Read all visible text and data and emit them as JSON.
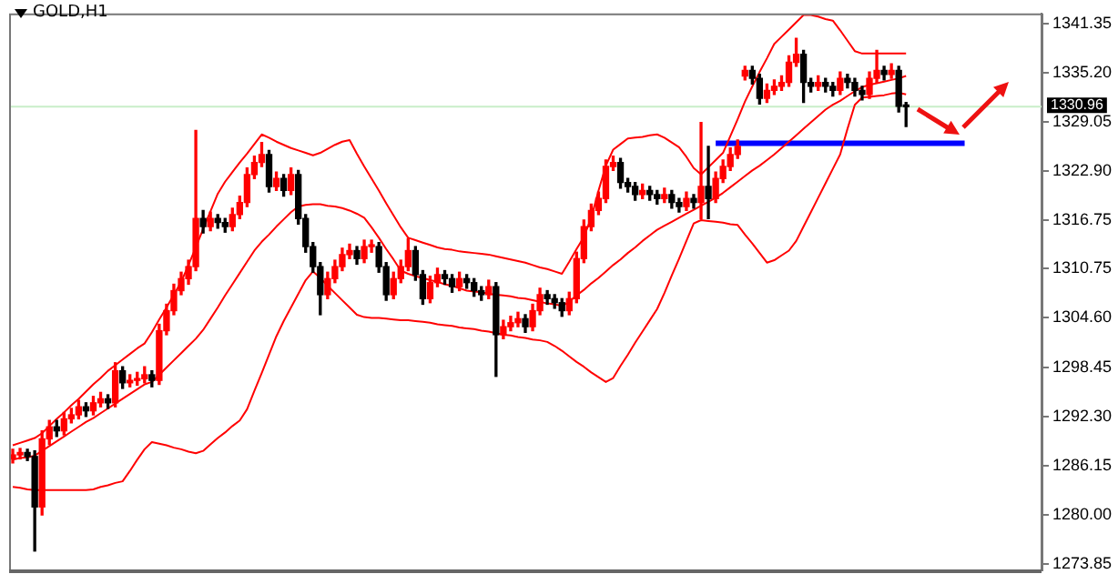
{
  "chart_data": {
    "type": "candlestick",
    "title": "GOLD,H1",
    "categories": [
      null,
      null,
      null,
      null,
      null,
      null,
      null,
      null,
      null,
      null,
      null,
      null,
      null,
      null,
      null,
      null,
      null,
      null,
      null,
      null,
      null,
      null,
      null,
      null,
      null,
      null,
      null,
      null,
      null,
      null,
      null,
      null,
      null,
      null,
      null,
      null,
      null,
      null,
      null,
      null,
      null,
      null,
      null,
      null,
      null,
      null,
      null,
      null,
      null,
      null,
      null,
      null,
      null,
      null,
      null,
      null,
      null,
      null,
      null,
      null,
      null,
      null,
      null,
      null,
      null,
      null,
      null,
      null,
      null,
      null,
      null,
      null,
      null,
      null,
      null,
      null,
      null,
      null,
      null,
      null,
      null,
      null,
      null,
      null,
      null,
      null,
      null,
      null,
      null,
      null,
      null,
      null,
      null,
      null,
      null,
      null,
      null,
      null,
      null,
      null,
      null,
      null,
      null,
      null,
      null,
      null,
      null,
      null,
      null,
      null,
      null,
      null,
      null,
      null,
      null,
      null,
      null,
      null,
      null,
      null,
      null,
      null,
      null,
      null,
      null,
      null,
      null,
      null,
      null,
      null,
      null,
      null,
      null,
      null,
      null,
      null,
      null,
      null,
      null,
      null,
      null
    ],
    "ohlc": [
      [
        1287.0,
        1288.2,
        1286.5,
        1287.5
      ],
      [
        1287.5,
        1288.3,
        1287.0,
        1287.8
      ],
      [
        1287.8,
        1288.2,
        1286.8,
        1287.3
      ],
      [
        1287.3,
        1288.0,
        1275.5,
        1281.0
      ],
      [
        1281.0,
        1290.5,
        1280.0,
        1289.5
      ],
      [
        1289.5,
        1291.8,
        1288.8,
        1291.0
      ],
      [
        1291.0,
        1291.8,
        1289.8,
        1290.5
      ],
      [
        1290.5,
        1292.8,
        1290.0,
        1292.0
      ],
      [
        1292.0,
        1293.3,
        1291.5,
        1292.5
      ],
      [
        1292.5,
        1294.3,
        1292.0,
        1293.5
      ],
      [
        1293.5,
        1294.0,
        1292.3,
        1293.0
      ],
      [
        1293.0,
        1294.8,
        1292.5,
        1294.0
      ],
      [
        1294.0,
        1295.3,
        1293.5,
        1294.5
      ],
      [
        1294.5,
        1295.0,
        1293.3,
        1294.0
      ],
      [
        1294.0,
        1299.0,
        1293.5,
        1298.0
      ],
      [
        1298.0,
        1298.5,
        1295.8,
        1296.5
      ],
      [
        1296.5,
        1297.5,
        1296.0,
        1296.8
      ],
      [
        1296.8,
        1297.8,
        1296.2,
        1297.0
      ],
      [
        1297.0,
        1298.5,
        1296.5,
        1297.5
      ],
      [
        1297.5,
        1298.0,
        1296.0,
        1296.8
      ],
      [
        1296.8,
        1303.8,
        1296.3,
        1303.0
      ],
      [
        1303.0,
        1306.3,
        1302.5,
        1305.5
      ],
      [
        1305.5,
        1308.8,
        1305.0,
        1308.0
      ],
      [
        1308.0,
        1310.3,
        1307.5,
        1309.5
      ],
      [
        1309.5,
        1311.8,
        1308.8,
        1311.0
      ],
      [
        1311.0,
        1328.0,
        1310.5,
        1317.0
      ],
      [
        1317.0,
        1318.0,
        1315.2,
        1316.0
      ],
      [
        1316.0,
        1317.8,
        1315.5,
        1317.0
      ],
      [
        1317.0,
        1317.5,
        1315.8,
        1316.5
      ],
      [
        1316.5,
        1317.0,
        1315.3,
        1316.0
      ],
      [
        1316.0,
        1318.3,
        1315.5,
        1317.5
      ],
      [
        1317.5,
        1319.8,
        1317.0,
        1319.0
      ],
      [
        1319.0,
        1323.3,
        1318.5,
        1322.5
      ],
      [
        1322.5,
        1324.8,
        1322.0,
        1324.0
      ],
      [
        1324.0,
        1326.5,
        1323.5,
        1325.0
      ],
      [
        1325.0,
        1325.5,
        1320.3,
        1321.0
      ],
      [
        1321.0,
        1322.8,
        1320.5,
        1322.0
      ],
      [
        1322.0,
        1322.5,
        1319.8,
        1320.5
      ],
      [
        1320.5,
        1323.3,
        1320.0,
        1322.5
      ],
      [
        1322.5,
        1323.0,
        1316.3,
        1317.0
      ],
      [
        1317.0,
        1317.5,
        1312.8,
        1313.5
      ],
      [
        1313.5,
        1314.0,
        1310.3,
        1311.0
      ],
      [
        1311.0,
        1311.5,
        1305.0,
        1307.5
      ],
      [
        1307.5,
        1310.3,
        1307.0,
        1309.5
      ],
      [
        1309.5,
        1311.8,
        1309.0,
        1311.0
      ],
      [
        1311.0,
        1313.3,
        1310.5,
        1312.5
      ],
      [
        1312.5,
        1313.8,
        1312.0,
        1313.0
      ],
      [
        1313.0,
        1313.5,
        1311.3,
        1312.0
      ],
      [
        1312.0,
        1314.3,
        1311.5,
        1313.5
      ],
      [
        1313.5,
        1314.3,
        1312.8,
        1313.5
      ],
      [
        1313.5,
        1314.0,
        1310.3,
        1311.0
      ],
      [
        1311.0,
        1311.5,
        1306.8,
        1307.5
      ],
      [
        1307.5,
        1310.3,
        1307.0,
        1309.5
      ],
      [
        1309.5,
        1311.8,
        1309.0,
        1311.0
      ],
      [
        1311.0,
        1314.5,
        1310.5,
        1313.0
      ],
      [
        1313.0,
        1313.5,
        1309.3,
        1310.0
      ],
      [
        1310.0,
        1310.5,
        1306.3,
        1307.0
      ],
      [
        1307.0,
        1309.8,
        1306.5,
        1309.0
      ],
      [
        1309.0,
        1310.8,
        1308.5,
        1310.0
      ],
      [
        1310.0,
        1310.5,
        1308.8,
        1309.5
      ],
      [
        1309.5,
        1310.0,
        1307.8,
        1308.5
      ],
      [
        1308.5,
        1310.3,
        1308.0,
        1309.5
      ],
      [
        1309.5,
        1310.0,
        1308.3,
        1309.0
      ],
      [
        1309.0,
        1309.5,
        1307.3,
        1308.0
      ],
      [
        1308.0,
        1308.5,
        1306.8,
        1307.5
      ],
      [
        1307.5,
        1309.3,
        1307.0,
        1308.5
      ],
      [
        1308.5,
        1309.0,
        1297.3,
        1302.5
      ],
      [
        1302.5,
        1304.3,
        1302.0,
        1303.5
      ],
      [
        1303.5,
        1304.8,
        1303.0,
        1304.0
      ],
      [
        1304.0,
        1305.3,
        1303.5,
        1304.5
      ],
      [
        1304.5,
        1305.0,
        1302.8,
        1303.5
      ],
      [
        1303.5,
        1306.3,
        1303.0,
        1305.5
      ],
      [
        1305.5,
        1308.3,
        1305.0,
        1307.5
      ],
      [
        1307.5,
        1308.0,
        1306.3,
        1307.0
      ],
      [
        1307.0,
        1307.5,
        1305.8,
        1306.5
      ],
      [
        1306.5,
        1307.0,
        1304.8,
        1305.5
      ],
      [
        1305.5,
        1307.8,
        1305.0,
        1307.0
      ],
      [
        1307.0,
        1312.8,
        1306.5,
        1312.0
      ],
      [
        1312.0,
        1316.8,
        1311.5,
        1316.0
      ],
      [
        1316.0,
        1318.8,
        1315.5,
        1318.0
      ],
      [
        1318.0,
        1320.3,
        1317.5,
        1319.5
      ],
      [
        1319.5,
        1324.3,
        1319.0,
        1323.5
      ],
      [
        1323.5,
        1324.8,
        1323.0,
        1324.0
      ],
      [
        1324.0,
        1324.5,
        1320.8,
        1321.5
      ],
      [
        1321.5,
        1322.0,
        1320.3,
        1321.0
      ],
      [
        1321.0,
        1321.5,
        1319.3,
        1320.0
      ],
      [
        1320.0,
        1321.3,
        1319.5,
        1320.5
      ],
      [
        1320.5,
        1321.0,
        1319.3,
        1320.0
      ],
      [
        1320.0,
        1320.5,
        1318.8,
        1319.5
      ],
      [
        1319.5,
        1320.8,
        1319.0,
        1320.0
      ],
      [
        1320.0,
        1320.5,
        1318.3,
        1319.0
      ],
      [
        1319.0,
        1319.5,
        1317.8,
        1318.5
      ],
      [
        1318.5,
        1320.3,
        1318.0,
        1319.5
      ],
      [
        1319.5,
        1320.0,
        1318.3,
        1319.0
      ],
      [
        1319.0,
        1329.0,
        1317.0,
        1321.0
      ],
      [
        1321.0,
        1326.0,
        1317.0,
        1319.5
      ],
      [
        1319.5,
        1322.8,
        1319.0,
        1322.0
      ],
      [
        1322.0,
        1324.3,
        1321.5,
        1323.5
      ],
      [
        1323.5,
        1325.8,
        1323.0,
        1325.0
      ],
      [
        1325.0,
        1326.8,
        1324.5,
        1326.0
      ],
      [
        1334.8,
        1336.0,
        1334.3,
        1335.5
      ],
      [
        1335.5,
        1336.0,
        1333.8,
        1334.5
      ],
      [
        1334.5,
        1335.0,
        1331.3,
        1332.0
      ],
      [
        1332.0,
        1333.8,
        1331.5,
        1333.0
      ],
      [
        1333.0,
        1334.3,
        1332.5,
        1333.5
      ],
      [
        1333.5,
        1334.8,
        1333.0,
        1334.0
      ],
      [
        1334.0,
        1337.3,
        1333.5,
        1336.5
      ],
      [
        1336.5,
        1339.5,
        1336.0,
        1337.5
      ],
      [
        1337.5,
        1338.0,
        1331.5,
        1334.0
      ],
      [
        1334.0,
        1334.5,
        1332.8,
        1333.5
      ],
      [
        1333.5,
        1334.8,
        1333.0,
        1334.0
      ],
      [
        1334.0,
        1334.5,
        1332.8,
        1333.5
      ],
      [
        1333.5,
        1334.0,
        1332.3,
        1333.0
      ],
      [
        1333.0,
        1335.3,
        1332.5,
        1334.5
      ],
      [
        1334.5,
        1335.0,
        1333.3,
        1334.0
      ],
      [
        1334.0,
        1334.5,
        1332.3,
        1333.0
      ],
      [
        1333.0,
        1333.5,
        1331.8,
        1332.5
      ],
      [
        1332.5,
        1335.3,
        1332.0,
        1334.5
      ],
      [
        1334.5,
        1338.0,
        1334.0,
        1335.5
      ],
      [
        1335.5,
        1336.0,
        1334.3,
        1335.0
      ],
      [
        1335.0,
        1336.3,
        1334.5,
        1335.5
      ],
      [
        1335.5,
        1336.0,
        1330.3,
        1331.0
      ],
      [
        1331.0,
        1331.5,
        1328.5,
        1330.96
      ],
      null,
      null,
      null,
      null,
      null,
      null,
      null,
      null,
      null,
      null,
      null,
      null,
      null,
      null,
      null,
      null,
      null,
      null
    ],
    "series": [
      {
        "type": "line",
        "color": "#ff0000",
        "values": [
          1288.7,
          1289.0,
          1289.3,
          1289.6,
          1290.2,
          1291.1,
          1292.0,
          1292.8,
          1293.7,
          1294.5,
          1295.4,
          1296.3,
          1297.1,
          1298.0,
          1298.7,
          1299.4,
          1300.1,
          1300.8,
          1301.4,
          1302.8,
          1304.4,
          1305.9,
          1307.5,
          1309.1,
          1311.2,
          1313.4,
          1315.7,
          1317.9,
          1320.1,
          1321.6,
          1322.8,
          1324.0,
          1325.1,
          1326.3,
          1327.5,
          1327.1,
          1326.6,
          1326.2,
          1325.8,
          1325.5,
          1325.2,
          1324.9,
          1325.2,
          1325.7,
          1326.2,
          1326.6,
          1326.8,
          1325.1,
          1323.5,
          1322.0,
          1320.5,
          1318.9,
          1317.4,
          1315.9,
          1314.6,
          1314.3,
          1314.0,
          1313.7,
          1313.4,
          1313.2,
          1313.1,
          1312.9,
          1312.8,
          1312.7,
          1312.6,
          1312.5,
          1312.3,
          1312.1,
          1311.9,
          1311.7,
          1311.5,
          1311.2,
          1310.9,
          1310.7,
          1310.4,
          1310.1,
          1311.6,
          1313.2,
          1314.7,
          1317.1,
          1320.5,
          1323.6,
          1325.6,
          1326.3,
          1327.0,
          1327.1,
          1327.2,
          1327.4,
          1327.5,
          1327.1,
          1326.5,
          1325.9,
          1324.7,
          1323.3,
          1322.5,
          1323.4,
          1324.3,
          1325.2,
          1327.3,
          1329.4,
          1331.6,
          1333.5,
          1335.3,
          1337.0,
          1338.8,
          1339.7,
          1340.6,
          1341.5,
          1342.4,
          1342.4,
          1342.2,
          1341.9,
          1341.7,
          1340.5,
          1339.2,
          1337.9,
          1337.6,
          1337.6,
          1337.6,
          1337.6,
          1337.6,
          1337.6,
          1337.6,
          null,
          null,
          null,
          null,
          null,
          null,
          null,
          null,
          null,
          null,
          null,
          null,
          null,
          null,
          null,
          null,
          null,
          null
        ]
      },
      {
        "type": "line",
        "color": "#ff0000",
        "values": [
          1286.9,
          1287.1,
          1287.2,
          1287.4,
          1288.0,
          1288.6,
          1289.2,
          1289.8,
          1290.4,
          1291.0,
          1291.6,
          1292.1,
          1292.7,
          1293.3,
          1293.9,
          1294.5,
          1295.1,
          1295.7,
          1296.3,
          1296.6,
          1297.5,
          1298.4,
          1299.3,
          1300.2,
          1301.1,
          1302.0,
          1303.1,
          1304.5,
          1305.9,
          1307.4,
          1308.8,
          1310.2,
          1311.6,
          1313.0,
          1314.1,
          1315.0,
          1316.0,
          1316.9,
          1317.8,
          1318.5,
          1318.7,
          1318.8,
          1318.8,
          1318.6,
          1318.5,
          1318.3,
          1318.0,
          1317.6,
          1317.1,
          1315.9,
          1314.6,
          1313.2,
          1311.9,
          1310.5,
          1310.1,
          1309.8,
          1309.6,
          1309.3,
          1309.1,
          1308.8,
          1308.6,
          1308.3,
          1308.0,
          1307.9,
          1307.8,
          1307.6,
          1307.5,
          1307.4,
          1307.3,
          1307.1,
          1307.0,
          1306.8,
          1306.6,
          1306.4,
          1306.3,
          1306.1,
          1306.6,
          1307.4,
          1308.1,
          1308.9,
          1309.6,
          1310.4,
          1311.2,
          1311.9,
          1312.7,
          1313.4,
          1314.2,
          1314.9,
          1315.6,
          1316.1,
          1316.6,
          1317.1,
          1317.6,
          1318.1,
          1318.6,
          1319.1,
          1319.6,
          1320.2,
          1320.9,
          1321.6,
          1322.3,
          1323.0,
          1323.6,
          1324.3,
          1325.0,
          1325.8,
          1326.6,
          1327.4,
          1328.2,
          1329.0,
          1329.8,
          1330.6,
          1331.2,
          1331.7,
          1332.3,
          1332.9,
          1333.4,
          1333.7,
          1333.9,
          1334.1,
          1334.3,
          1334.5,
          1334.8,
          null,
          null,
          null,
          null,
          null,
          null,
          null,
          null,
          null,
          null,
          null,
          null,
          null,
          null,
          null,
          null,
          null,
          null
        ]
      },
      {
        "type": "line",
        "color": "#ff0000",
        "values": [
          1283.5,
          1283.4,
          1283.2,
          1283.1,
          1283.1,
          1283.1,
          1283.1,
          1283.1,
          1283.1,
          1283.1,
          1283.1,
          1283.2,
          1283.5,
          1283.7,
          1284.0,
          1284.2,
          1285.5,
          1286.9,
          1288.2,
          1289.1,
          1288.9,
          1288.7,
          1288.4,
          1288.2,
          1287.9,
          1287.7,
          1288.0,
          1288.8,
          1289.6,
          1290.3,
          1291.1,
          1291.8,
          1293.2,
          1295.5,
          1297.7,
          1300.0,
          1302.3,
          1304.2,
          1305.9,
          1307.6,
          1309.3,
          1310.4,
          1309.6,
          1308.6,
          1307.7,
          1306.8,
          1305.9,
          1305.0,
          1304.7,
          1304.6,
          1304.6,
          1304.5,
          1304.4,
          1304.3,
          1304.3,
          1304.2,
          1304.1,
          1304.0,
          1303.8,
          1303.7,
          1303.6,
          1303.4,
          1303.3,
          1303.2,
          1303.0,
          1302.9,
          1302.7,
          1302.5,
          1302.4,
          1302.2,
          1302.1,
          1301.9,
          1301.8,
          1301.6,
          1301.1,
          1300.5,
          1299.8,
          1299.1,
          1298.5,
          1297.8,
          1297.2,
          1296.6,
          1297.1,
          1298.6,
          1300.0,
          1301.5,
          1302.9,
          1304.3,
          1305.7,
          1307.7,
          1309.9,
          1312.0,
          1314.2,
          1316.4,
          1316.8,
          1316.7,
          1316.6,
          1316.5,
          1316.3,
          1316.2,
          1315.0,
          1313.9,
          1312.7,
          1311.5,
          1311.8,
          1312.4,
          1313.0,
          1314.2,
          1316.0,
          1317.8,
          1319.6,
          1321.4,
          1323.2,
          1325.0,
          1328.2,
          1331.2,
          1332.1,
          1332.2,
          1332.3,
          1332.4,
          1332.6,
          1332.7,
          1332.5,
          null,
          null,
          null,
          null,
          null,
          null,
          null,
          null,
          null,
          null,
          null,
          null,
          null,
          null,
          null,
          null,
          null,
          null
        ]
      },
      {
        "type": "line",
        "color": "#0000ff",
        "values": [
          null,
          null,
          null,
          null,
          null,
          null,
          null,
          null,
          null,
          null,
          null,
          null,
          null,
          null,
          null,
          null,
          null,
          null,
          null,
          null,
          null,
          null,
          null,
          null,
          null,
          null,
          null,
          null,
          null,
          null,
          null,
          null,
          null,
          null,
          null,
          null,
          null,
          null,
          null,
          null,
          null,
          null,
          null,
          null,
          null,
          null,
          null,
          null,
          null,
          null,
          null,
          null,
          null,
          null,
          null,
          null,
          null,
          null,
          null,
          null,
          null,
          null,
          null,
          null,
          null,
          null,
          null,
          null,
          null,
          null,
          null,
          null,
          null,
          null,
          null,
          null,
          null,
          null,
          null,
          null,
          null,
          null,
          null,
          null,
          null,
          null,
          null,
          null,
          null,
          null,
          null,
          null,
          null,
          null,
          null,
          null,
          1326.4,
          1326.4,
          1326.4,
          1326.4,
          1326.4,
          1326.4,
          1326.4,
          1326.4,
          1326.4,
          1326.4,
          1326.4,
          1326.4,
          1326.4,
          1326.4,
          1326.4,
          1326.4,
          1326.4,
          1326.4,
          1326.4,
          1326.4,
          1326.4,
          1326.4,
          1326.4,
          1326.4,
          1326.4,
          1326.4,
          1326.4,
          1326.4,
          1326.4,
          1326.4,
          1326.4,
          1326.4,
          1326.4,
          1326.4,
          1326.4,
          null,
          null,
          null,
          null,
          null,
          null,
          null,
          null,
          null,
          null
        ]
      }
    ],
    "ylim": [
      1273.2,
      1342.6
    ],
    "yticks": [
      1341.35,
      {
        "value": 1335.2,
        "label": "1335.20"
      },
      1329.05,
      {
        "value": 1322.9,
        "label": "1322.90"
      },
      1316.75,
      1310.75,
      {
        "value": 1304.6,
        "label": "1304.60"
      },
      1298.45,
      {
        "value": 1292.3,
        "label": "1292.30"
      },
      1286.15,
      {
        "value": 1280,
        "label": "1280.00"
      },
      1273.85
    ],
    "ref_lines": [
      {
        "axis": "y",
        "value": 1330.96,
        "label": "1330.96",
        "color": "#c8eec8"
      }
    ],
    "tick_labels": "y",
    "grid": false,
    "legend": false
  }
}
